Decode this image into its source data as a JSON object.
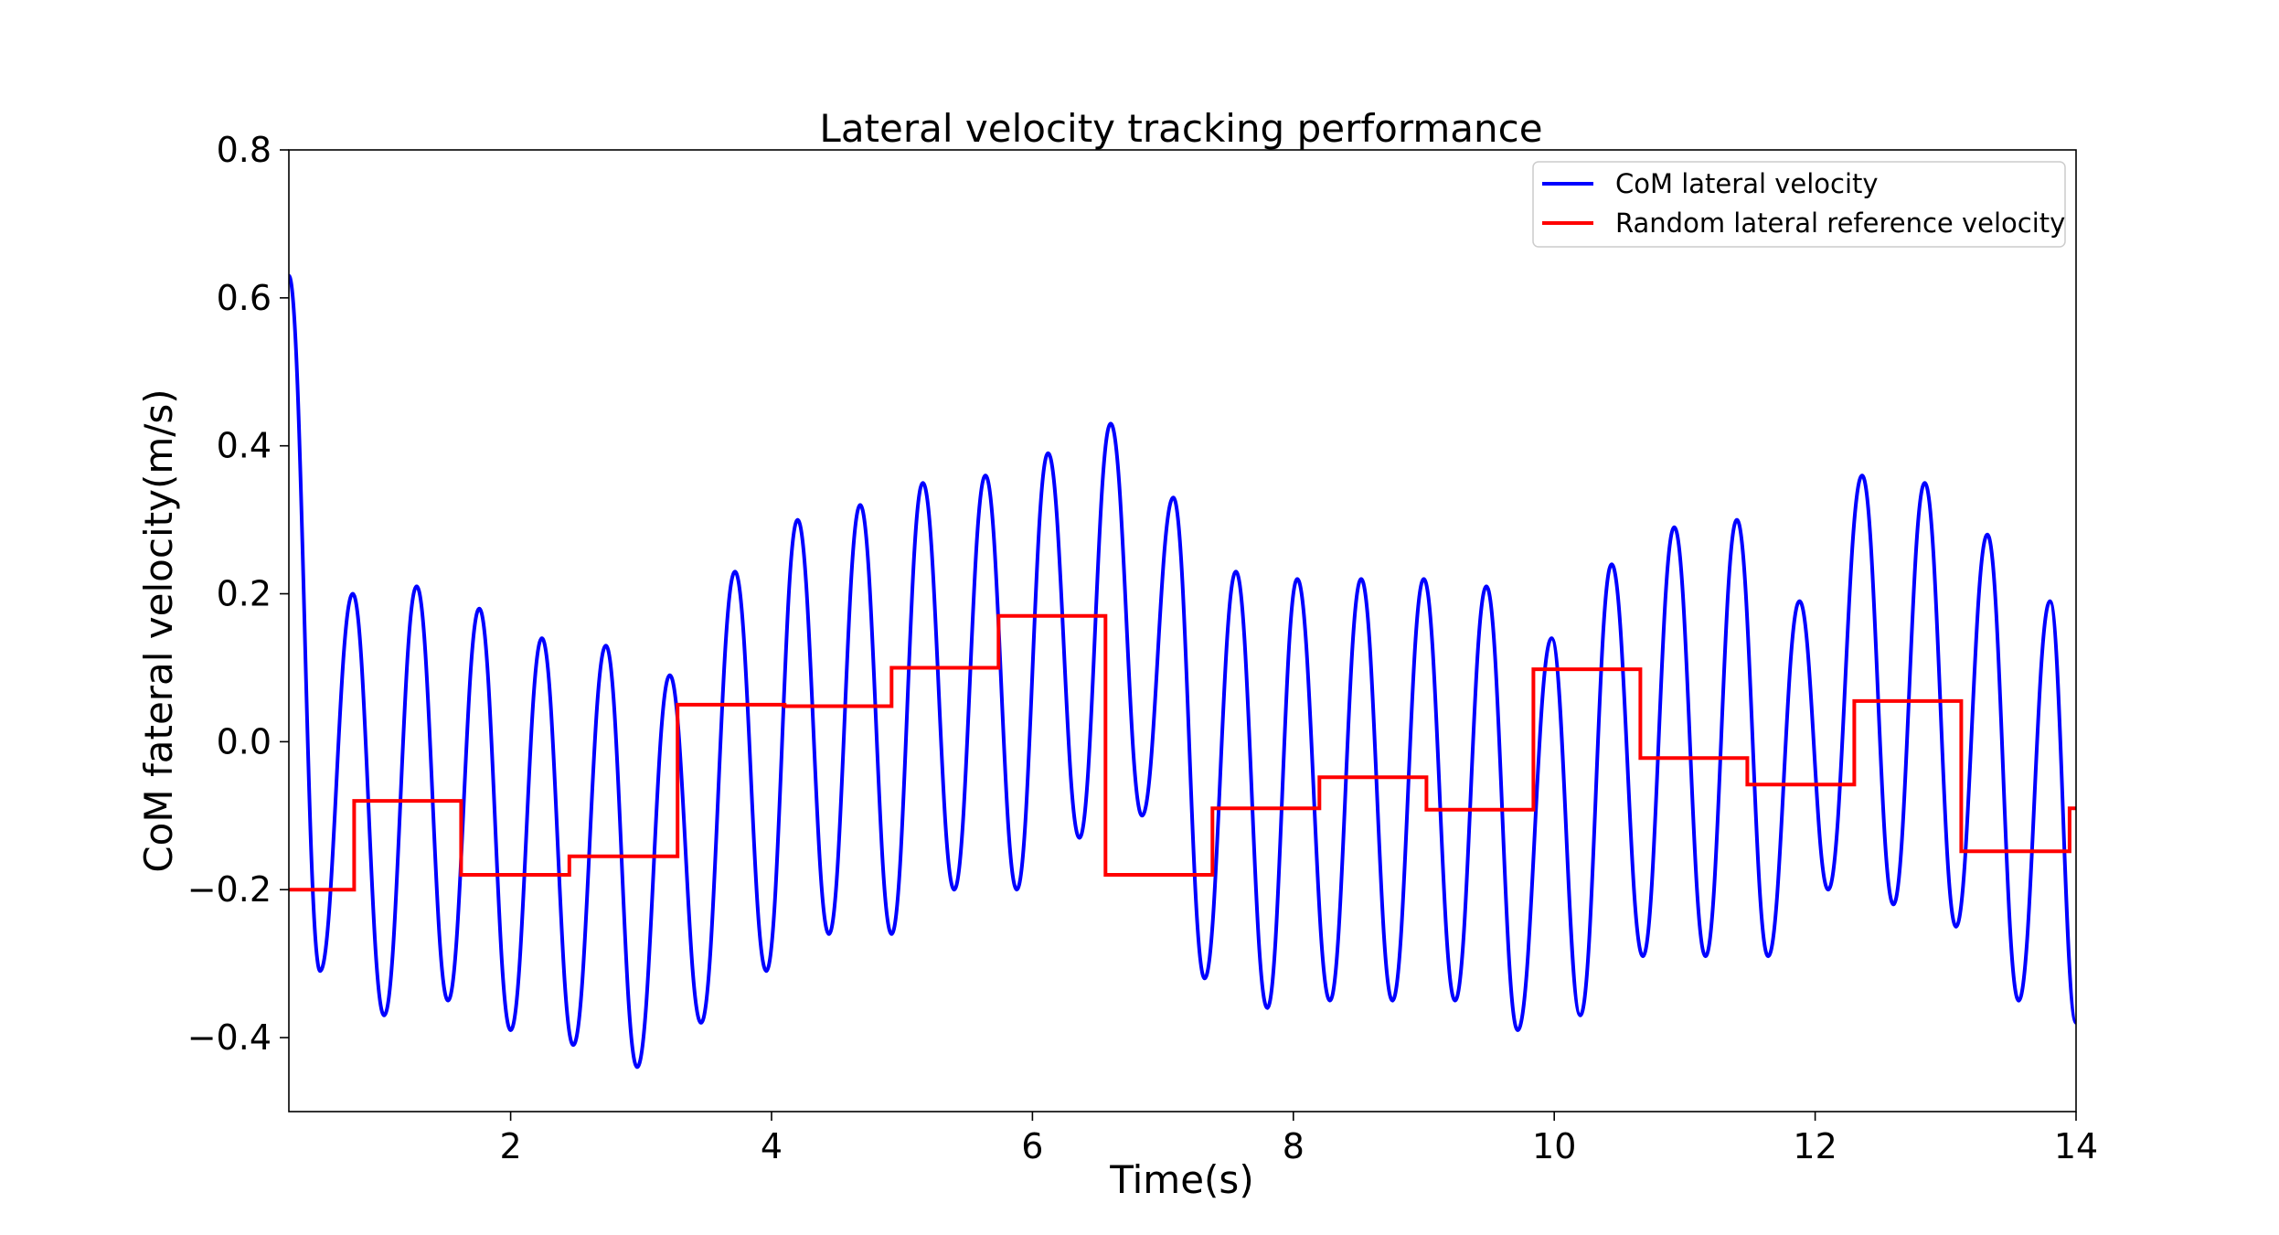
{
  "chart_data": {
    "type": "line",
    "title": "Lateral velocity tracking performance",
    "xlabel": "Time(s)",
    "ylabel": "CoM fateral velocity(m/s)",
    "xlim": [
      0.3,
      14.0
    ],
    "ylim": [
      -0.5,
      0.8
    ],
    "xticks": [
      2,
      4,
      6,
      8,
      10,
      12,
      14
    ],
    "yticks": [
      -0.4,
      -0.2,
      0.0,
      0.2,
      0.4,
      0.6,
      0.8
    ],
    "ytick_labels": [
      "−0.4",
      "−0.2",
      "0.0",
      "0.2",
      "0.4",
      "0.6",
      "0.8"
    ],
    "grid": false,
    "legend_position": "top-right",
    "colors": {
      "com": "#0000ff",
      "reference": "#ff0000"
    },
    "series": [
      {
        "name": "CoM lateral velocity",
        "kind": "oscillation",
        "start": 0.63,
        "peaks": [
          [
            0.79,
            0.2
          ],
          [
            1.28,
            0.21
          ],
          [
            1.76,
            0.18
          ],
          [
            2.24,
            0.14
          ],
          [
            2.73,
            0.13
          ],
          [
            3.22,
            0.09
          ],
          [
            3.72,
            0.23
          ],
          [
            4.2,
            0.3
          ],
          [
            4.68,
            0.32
          ],
          [
            5.16,
            0.35
          ],
          [
            5.64,
            0.36
          ],
          [
            6.12,
            0.39
          ],
          [
            6.6,
            0.43
          ],
          [
            7.08,
            0.33
          ],
          [
            7.56,
            0.23
          ],
          [
            8.03,
            0.22
          ],
          [
            8.52,
            0.22
          ],
          [
            9.0,
            0.22
          ],
          [
            9.48,
            0.21
          ],
          [
            9.98,
            0.14
          ],
          [
            10.44,
            0.24
          ],
          [
            10.92,
            0.29
          ],
          [
            11.4,
            0.3
          ],
          [
            11.88,
            0.19
          ],
          [
            12.36,
            0.36
          ],
          [
            12.84,
            0.35
          ],
          [
            13.32,
            0.28
          ],
          [
            13.8,
            0.19
          ]
        ],
        "troughs": [
          [
            0.54,
            -0.31
          ],
          [
            1.03,
            -0.37
          ],
          [
            1.52,
            -0.35
          ],
          [
            2.0,
            -0.39
          ],
          [
            2.48,
            -0.41
          ],
          [
            2.97,
            -0.44
          ],
          [
            3.46,
            -0.38
          ],
          [
            3.96,
            -0.31
          ],
          [
            4.44,
            -0.26
          ],
          [
            4.92,
            -0.26
          ],
          [
            5.4,
            -0.2
          ],
          [
            5.88,
            -0.2
          ],
          [
            6.36,
            -0.13
          ],
          [
            6.84,
            -0.1
          ],
          [
            7.32,
            -0.32
          ],
          [
            7.8,
            -0.36
          ],
          [
            8.28,
            -0.35
          ],
          [
            8.76,
            -0.35
          ],
          [
            9.24,
            -0.35
          ],
          [
            9.72,
            -0.39
          ],
          [
            10.2,
            -0.37
          ],
          [
            10.68,
            -0.29
          ],
          [
            11.16,
            -0.29
          ],
          [
            11.64,
            -0.29
          ],
          [
            12.1,
            -0.2
          ],
          [
            12.6,
            -0.22
          ],
          [
            13.08,
            -0.25
          ],
          [
            13.56,
            -0.35
          ]
        ],
        "end": [
          14.0,
          -0.38
        ]
      },
      {
        "name": "Random lateral reference velocity",
        "kind": "step",
        "x": [
          0.3,
          0.8,
          1.62,
          2.45,
          3.28,
          4.1,
          4.92,
          5.74,
          6.56,
          7.38,
          8.2,
          9.02,
          9.84,
          10.66,
          11.48,
          12.3,
          13.12,
          13.95,
          14.0
        ],
        "y": [
          -0.2,
          -0.08,
          -0.18,
          -0.155,
          0.05,
          0.048,
          0.1,
          0.17,
          -0.18,
          -0.09,
          -0.048,
          -0.092,
          0.098,
          -0.022,
          -0.058,
          0.055,
          -0.148,
          -0.09,
          -0.09
        ]
      }
    ]
  }
}
